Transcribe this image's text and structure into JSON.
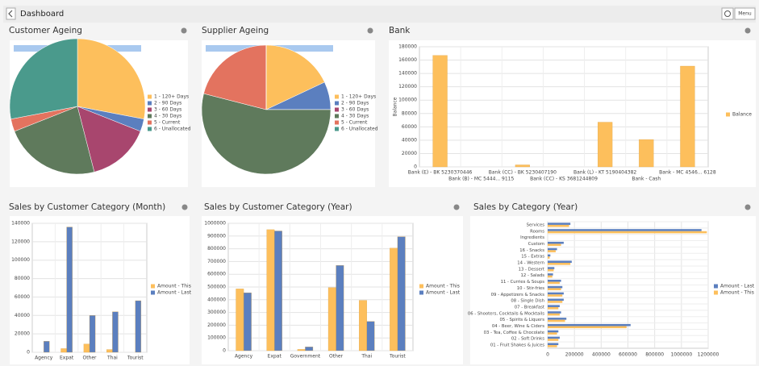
{
  "header": {
    "title": "Dashboard",
    "menu": "Menu"
  },
  "chart_data": [
    {
      "type": "pie",
      "title": "Customer Ageing",
      "series_name": "Amount",
      "categories": [
        "1 - 120+ Days",
        "2 - 90 Days",
        "3 - 60 Days",
        "4 - 30 Days",
        "5 - Current",
        "6 - Unallocated"
      ],
      "values": [
        28,
        3,
        15,
        23,
        3,
        28
      ],
      "colors": [
        "#fdbf5c",
        "#5b7fbf",
        "#a8466e",
        "#5f7a5c",
        "#e3735f",
        "#4a9a8c"
      ]
    },
    {
      "type": "pie",
      "title": "Supplier Ageing",
      "series_name": "Amount",
      "categories": [
        "1 - 120+ Days",
        "2 - 90 Days",
        "3 - 60 Days",
        "4 - 30 Days",
        "5 - Current",
        "6 - Unallocated"
      ],
      "values": [
        18,
        7,
        0,
        54,
        21,
        0
      ],
      "colors": [
        "#fdbf5c",
        "#5b7fbf",
        "#a8466e",
        "#5f7a5c",
        "#e3735f",
        "#4a9a8c"
      ]
    },
    {
      "type": "bar",
      "title": "Bank",
      "ylabel": "Balance",
      "categories": [
        "Bank (E) - BK 5230370446",
        "Bank (B) - MC 5444... 9115",
        "Bank (CC) - BK 5230407190",
        "Bank (CC) - KS 3681244809",
        "Bank (L) - KT 5190404382",
        "Bank - Cash",
        "Bank - MC 4546... 6128"
      ],
      "series": [
        {
          "name": "Balance",
          "color": "#fdbf5c",
          "values": [
            167000,
            0,
            3000,
            0,
            67000,
            41000,
            151000
          ]
        }
      ],
      "ylim": [
        0,
        180000
      ],
      "yticks": [
        0,
        20000,
        40000,
        60000,
        80000,
        100000,
        120000,
        140000,
        160000,
        180000
      ],
      "grid": true
    },
    {
      "type": "bar",
      "title": "Sales by Customer Category (Month)",
      "categories": [
        "Agency",
        "Expat",
        "Other",
        "Thai",
        "Tourist"
      ],
      "series": [
        {
          "name": "Amount - This",
          "color": "#fdbf5c",
          "values": [
            0,
            4000,
            9000,
            3000,
            0
          ]
        },
        {
          "name": "Amount - Last",
          "color": "#5b7fbf",
          "values": [
            12000,
            136000,
            40000,
            44000,
            56000
          ]
        }
      ],
      "ylim": [
        0,
        140000
      ],
      "yticks": [
        0,
        20000,
        40000,
        60000,
        80000,
        100000,
        120000,
        140000
      ],
      "grid": true
    },
    {
      "type": "bar",
      "title": "Sales by Customer Category (Year)",
      "categories": [
        "Agency",
        "Expat",
        "Government",
        "Other",
        "Thai",
        "Tourist"
      ],
      "series": [
        {
          "name": "Amount - This",
          "color": "#fdbf5c",
          "values": [
            485000,
            950000,
            10000,
            495000,
            395000,
            805000
          ]
        },
        {
          "name": "Amount - Last",
          "color": "#5b7fbf",
          "values": [
            455000,
            940000,
            30000,
            670000,
            230000,
            895000
          ]
        }
      ],
      "ylim": [
        0,
        1000000
      ],
      "yticks": [
        0,
        100000,
        200000,
        300000,
        400000,
        500000,
        600000,
        700000,
        800000,
        900000,
        1000000
      ],
      "grid": true
    },
    {
      "type": "hbar",
      "title": "Sales by Category (Year)",
      "categories": [
        "Services",
        "Rooms",
        "Ingredients",
        "Custom",
        "16 - Snacks",
        "15 - Extras",
        "14 - Western",
        "13 - Dessert",
        "12 - Salads",
        "11 - Curries & Soups",
        "10 - Stir-fries",
        "09 - Appetizers & Snacks",
        "08 - Single Dish",
        "07 - Breakfast",
        "06 - Shooters, Cocktails & Mocktails",
        "05 - Spirits & Liquers",
        "04 - Beer, Wine & Ciders",
        "03 - Tea, Coffee & Chocolate",
        "02 - Soft Drinks",
        "01 - Fruit Shakes & Juices"
      ],
      "series": [
        {
          "name": "Amount - Last",
          "color": "#5b7fbf",
          "values": [
            170000,
            1150000,
            0,
            120000,
            70000,
            20000,
            180000,
            50000,
            40000,
            100000,
            110000,
            120000,
            120000,
            90000,
            100000,
            140000,
            620000,
            80000,
            90000,
            80000
          ]
        },
        {
          "name": "Amount - This",
          "color": "#fdbf5c",
          "values": [
            160000,
            1190000,
            0,
            100000,
            60000,
            15000,
            170000,
            45000,
            35000,
            90000,
            100000,
            110000,
            110000,
            80000,
            90000,
            130000,
            590000,
            70000,
            80000,
            70000
          ]
        }
      ],
      "xlim": [
        0,
        1200000
      ],
      "xticks": [
        0,
        200000,
        400000,
        600000,
        800000,
        1000000,
        1200000
      ],
      "grid": true
    }
  ]
}
